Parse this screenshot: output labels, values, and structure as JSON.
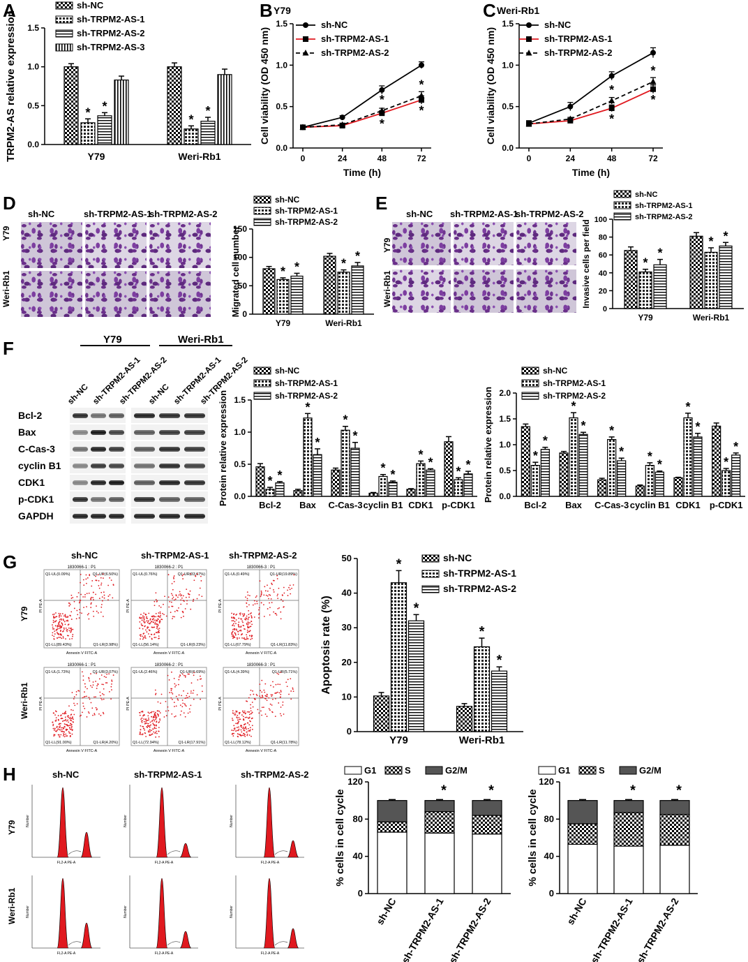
{
  "panels": [
    "A",
    "B",
    "C",
    "D",
    "E",
    "F",
    "G",
    "H"
  ],
  "legends": {
    "a": [
      "sh-NC",
      "sh-TRPM2-AS-1",
      "sh-TRPM2-AS-2",
      "sh-TRPM2-AS-3"
    ],
    "two": [
      "sh-NC",
      "sh-TRPM2-AS-1",
      "sh-TRPM2-AS-2"
    ],
    "cycle": [
      "G1",
      "S",
      "G2/M"
    ]
  },
  "cells": [
    "Y79",
    "Weri-Rb1"
  ],
  "groups": [
    "sh-NC",
    "sh-TRPM2-AS-1",
    "sh-TRPM2-AS-2"
  ],
  "wb": {
    "proteins": [
      "Bcl-2",
      "Bax",
      "C-Cas-3",
      "cyclin B1",
      "CDK1",
      "p-CDK1",
      "GAPDH"
    ],
    "lanes": [
      "sh-NC",
      "sh-TRPM2-AS-1",
      "sh-TRPM2-AS-2",
      "sh-NC",
      "sh-TRPM2-AS-1",
      "sh-TRPM2-AS-2"
    ]
  },
  "flow": {
    "titles": [
      "1830066-1 : P1",
      "1830066-2 : P1",
      "1830066-3 : P1",
      "1830066-1 : P1",
      "1830066-2 : P1",
      "1830066-3 : P1"
    ],
    "quadrants": [
      [
        "Q1-UL(0.09%)",
        "Q1-UR(6.50%)",
        "Q1-LL(89.43%)",
        "Q1-LR(3.98%)"
      ],
      [
        "Q1-UL(0.76%)",
        "Q1-UR(33.67%)",
        "Q1-LL(56.14%)",
        "Q1-LR(9.23%)"
      ],
      [
        "Q1-UL(0.49%)",
        "Q1-UR(19.89%)",
        "Q1-LL(67.79%)",
        "Q1-LR(11.83%)"
      ],
      [
        "Q1-UL(1.73%)",
        "Q1-UR(3.07%)",
        "Q1-LL(91.00%)",
        "Q1-LR(4.20%)"
      ],
      [
        "Q1-UL(2.46%)",
        "Q1-UR(6.69%)",
        "Q1-LL(72.94%)",
        "Q1-LR(17.91%)"
      ],
      [
        "Q1-UL(4.39%)",
        "Q1-UR(5.71%)",
        "Q1-LL(78.12%)",
        "Q1-LR(11.78%)"
      ]
    ],
    "xlabel": "Annexin V FITC-A",
    "ylabel": "PI PE-A"
  },
  "hist_axes": {
    "xlabel": "FL2-A PE-A",
    "ylabel": "Number"
  },
  "chart_data": [
    {
      "id": "A",
      "type": "bar",
      "categories": [
        "Y79",
        "Weri-Rb1"
      ],
      "series": [
        {
          "name": "sh-NC",
          "values": [
            1.0,
            1.0
          ],
          "errors": [
            0.04,
            0.05
          ]
        },
        {
          "name": "sh-TRPM2-AS-1",
          "values": [
            0.28,
            0.2
          ],
          "errors": [
            0.05,
            0.04
          ]
        },
        {
          "name": "sh-TRPM2-AS-2",
          "values": [
            0.37,
            0.3
          ],
          "errors": [
            0.04,
            0.05
          ]
        },
        {
          "name": "sh-TRPM2-AS-3",
          "values": [
            0.83,
            0.9
          ],
          "errors": [
            0.05,
            0.07
          ]
        }
      ],
      "stars": [
        [
          false,
          false
        ],
        [
          true,
          true
        ],
        [
          true,
          true
        ],
        [
          false,
          false
        ]
      ],
      "ylabel": "TRPM2-AS relative expression",
      "ylim": [
        0,
        1.5
      ],
      "yticks": [
        0,
        0.5,
        1.0,
        1.5
      ],
      "ytick_labels": [
        "0.0",
        "0.5",
        "1.0",
        "1.5"
      ]
    },
    {
      "id": "B",
      "type": "line",
      "title": "Y79",
      "x": [
        0,
        24,
        48,
        72
      ],
      "series": [
        {
          "name": "sh-NC",
          "values": [
            0.25,
            0.37,
            0.7,
            1.0
          ],
          "errors": [
            0.02,
            0.02,
            0.05,
            0.04
          ]
        },
        {
          "name": "sh-TRPM2-AS-1",
          "values": [
            0.25,
            0.27,
            0.42,
            0.58
          ],
          "errors": [
            0.02,
            0.02,
            0.03,
            0.05
          ]
        },
        {
          "name": "sh-TRPM2-AS-2",
          "values": [
            0.25,
            0.28,
            0.45,
            0.63
          ],
          "errors": [
            0.02,
            0.02,
            0.03,
            0.05
          ]
        }
      ],
      "xlabel": "Time (h)",
      "ylabel": "Cell viability (OD 450 nm)",
      "ylim": [
        0,
        1.5
      ],
      "yticks": [
        0,
        0.5,
        1.0,
        1.5
      ],
      "ytick_labels": [
        "0.0",
        "0.5",
        "1.0",
        "1.5"
      ],
      "xtick_labels": [
        "0",
        "24",
        "48",
        "72"
      ]
    },
    {
      "id": "C",
      "type": "line",
      "title": "Weri-Rb1",
      "x": [
        0,
        24,
        48,
        72
      ],
      "series": [
        {
          "name": "sh-NC",
          "values": [
            0.3,
            0.5,
            0.87,
            1.15
          ],
          "errors": [
            0.03,
            0.05,
            0.05,
            0.06
          ]
        },
        {
          "name": "sh-TRPM2-AS-1",
          "values": [
            0.29,
            0.33,
            0.48,
            0.71
          ],
          "errors": [
            0.02,
            0.02,
            0.04,
            0.05
          ]
        },
        {
          "name": "sh-TRPM2-AS-2",
          "values": [
            0.29,
            0.35,
            0.57,
            0.8
          ],
          "errors": [
            0.02,
            0.02,
            0.04,
            0.05
          ]
        }
      ],
      "xlabel": "Time (h)",
      "ylabel": "Cell viability (OD 450 nm)",
      "ylim": [
        0,
        1.5
      ],
      "yticks": [
        0,
        0.5,
        1.0,
        1.5
      ],
      "ytick_labels": [
        "0.0",
        "0.5",
        "1.0",
        "1.5"
      ],
      "xtick_labels": [
        "0",
        "24",
        "48",
        "72"
      ]
    },
    {
      "id": "D",
      "type": "bar",
      "categories": [
        "Y79",
        "Weri-Rb1"
      ],
      "series": [
        {
          "name": "sh-NC",
          "values": [
            80,
            102
          ],
          "errors": [
            4,
            5
          ]
        },
        {
          "name": "sh-TRPM2-AS-1",
          "values": [
            61,
            74
          ],
          "errors": [
            3,
            4
          ]
        },
        {
          "name": "sh-TRPM2-AS-2",
          "values": [
            67,
            85
          ],
          "errors": [
            5,
            6
          ]
        }
      ],
      "stars": [
        [
          false,
          false
        ],
        [
          true,
          true
        ],
        [
          true,
          true
        ]
      ],
      "ylabel": "Migrated cell number",
      "ylim": [
        0,
        150
      ],
      "yticks": [
        0,
        50,
        100,
        150
      ],
      "ytick_labels": [
        "0",
        "50",
        "100",
        "150"
      ]
    },
    {
      "id": "E",
      "type": "bar",
      "categories": [
        "Y79",
        "Weri-Rb1"
      ],
      "series": [
        {
          "name": "sh-NC",
          "values": [
            65,
            81
          ],
          "errors": [
            4,
            4
          ]
        },
        {
          "name": "sh-TRPM2-AS-1",
          "values": [
            41,
            63
          ],
          "errors": [
            3,
            5
          ]
        },
        {
          "name": "sh-TRPM2-AS-2",
          "values": [
            49,
            70
          ],
          "errors": [
            6,
            4
          ]
        }
      ],
      "stars": [
        [
          false,
          false
        ],
        [
          true,
          true
        ],
        [
          true,
          true
        ]
      ],
      "ylabel": "Invasive cells per field",
      "ylim": [
        0,
        100
      ],
      "yticks": [
        0,
        20,
        40,
        60,
        80,
        100
      ],
      "ytick_labels": [
        "0",
        "20",
        "40",
        "60",
        "80",
        "100"
      ]
    },
    {
      "id": "F1",
      "type": "bar",
      "categories": [
        "Bcl-2",
        "Bax",
        "C-Cas-3",
        "cyclin B1",
        "CDK1",
        "p-CDK1"
      ],
      "series": [
        {
          "name": "sh-NC",
          "values": [
            0.46,
            0.09,
            0.41,
            0.05,
            0.11,
            0.85
          ],
          "errors": [
            0.05,
            0.02,
            0.03,
            0.01,
            0.01,
            0.08
          ]
        },
        {
          "name": "sh-TRPM2-AS-1",
          "values": [
            0.11,
            1.22,
            1.03,
            0.31,
            0.51,
            0.26
          ],
          "errors": [
            0.03,
            0.07,
            0.06,
            0.03,
            0.04,
            0.03
          ]
        },
        {
          "name": "sh-TRPM2-AS-2",
          "values": [
            0.21,
            0.65,
            0.75,
            0.22,
            0.41,
            0.35
          ],
          "errors": [
            0.02,
            0.09,
            0.09,
            0.02,
            0.02,
            0.04
          ]
        }
      ],
      "stars": [
        [
          false,
          false,
          false,
          false,
          false,
          false
        ],
        [
          true,
          true,
          true,
          true,
          true,
          true
        ],
        [
          true,
          true,
          true,
          true,
          true,
          true
        ]
      ],
      "ylabel": "Protein relative expression",
      "ylim": [
        0,
        1.5
      ],
      "yticks": [
        0,
        0.5,
        1.0,
        1.5
      ],
      "ytick_labels": [
        "0.0",
        "0.5",
        "1.0",
        "1.5"
      ]
    },
    {
      "id": "F2",
      "type": "bar",
      "categories": [
        "Bcl-2",
        "Bax",
        "C-Cas-3",
        "cyclin B1",
        "CDK1",
        "p-CDK1"
      ],
      "series": [
        {
          "name": "sh-NC",
          "values": [
            1.35,
            0.84,
            0.32,
            0.2,
            0.36,
            1.36
          ],
          "errors": [
            0.05,
            0.03,
            0.03,
            0.02,
            0.01,
            0.06
          ]
        },
        {
          "name": "sh-TRPM2-AS-1",
          "values": [
            0.6,
            1.52,
            1.1,
            0.6,
            1.52,
            0.5
          ],
          "errors": [
            0.06,
            0.1,
            0.05,
            0.05,
            0.09,
            0.04
          ]
        },
        {
          "name": "sh-TRPM2-AS-2",
          "values": [
            0.91,
            1.2,
            0.69,
            0.47,
            1.15,
            0.8
          ],
          "errors": [
            0.04,
            0.04,
            0.05,
            0.02,
            0.07,
            0.04
          ]
        }
      ],
      "stars": [
        [
          false,
          false,
          false,
          false,
          false,
          false
        ],
        [
          true,
          true,
          true,
          true,
          true,
          true
        ],
        [
          true,
          true,
          true,
          true,
          true,
          true
        ]
      ],
      "ylabel": "Protein relative expression",
      "ylim": [
        0,
        2.0
      ],
      "yticks": [
        0,
        0.5,
        1.0,
        1.5,
        2.0
      ],
      "ytick_labels": [
        "0.0",
        "0.5",
        "1.0",
        "1.5",
        "2.0"
      ]
    },
    {
      "id": "G",
      "type": "bar",
      "categories": [
        "Y79",
        "Weri-Rb1"
      ],
      "series": [
        {
          "name": "sh-NC",
          "values": [
            10.3,
            7.3
          ],
          "errors": [
            1.0,
            0.8
          ]
        },
        {
          "name": "sh-TRPM2-AS-1",
          "values": [
            43,
            24.5
          ],
          "errors": [
            3.5,
            2.5
          ]
        },
        {
          "name": "sh-TRPM2-AS-2",
          "values": [
            32,
            17.5
          ],
          "errors": [
            1.8,
            1.2
          ]
        }
      ],
      "stars": [
        [
          false,
          false
        ],
        [
          true,
          true
        ],
        [
          true,
          true
        ]
      ],
      "ylabel": "Apoptosis rate (%)",
      "ylim": [
        0,
        50
      ],
      "yticks": [
        0,
        10,
        20,
        30,
        40,
        50
      ],
      "ytick_labels": [
        "0",
        "10",
        "20",
        "30",
        "40",
        "50"
      ]
    },
    {
      "id": "H1",
      "type": "bar",
      "stacked": true,
      "categories": [
        "sh-NC",
        "sh-TRPM2-AS-1",
        "sh-TRPM2-AS-2"
      ],
      "series": [
        {
          "name": "G1",
          "values": [
            66,
            65,
            64
          ],
          "errors": [
            1,
            1,
            1
          ]
        },
        {
          "name": "S",
          "values": [
            11,
            23,
            20
          ],
          "errors": [
            1,
            1,
            1
          ]
        },
        {
          "name": "G2/M",
          "values": [
            23,
            12,
            16
          ],
          "errors": [
            1,
            1,
            1
          ]
        }
      ],
      "stars": [
        false,
        true,
        true
      ],
      "ylabel": "% cells in cell cycle",
      "ylim": [
        0,
        120
      ],
      "yticks": [
        0,
        40,
        80,
        120
      ],
      "ytick_labels": [
        "0",
        "40",
        "80",
        "120"
      ]
    },
    {
      "id": "H2",
      "type": "bar",
      "stacked": true,
      "categories": [
        "sh-NC",
        "sh-TRPM2-AS-1",
        "sh-TRPM2-AS-2"
      ],
      "series": [
        {
          "name": "G1",
          "values": [
            53,
            51,
            52
          ],
          "errors": [
            1,
            2,
            1
          ]
        },
        {
          "name": "S",
          "values": [
            22,
            36,
            33
          ],
          "errors": [
            1,
            1,
            1
          ]
        },
        {
          "name": "G2/M",
          "values": [
            25,
            13,
            15
          ],
          "errors": [
            1,
            1,
            1
          ]
        }
      ],
      "stars": [
        false,
        true,
        true
      ],
      "ylabel": "% cells in cell cycle",
      "ylim": [
        0,
        120
      ],
      "yticks": [
        0,
        40,
        80,
        120
      ],
      "ytick_labels": [
        "0",
        "40",
        "80",
        "120"
      ]
    }
  ]
}
